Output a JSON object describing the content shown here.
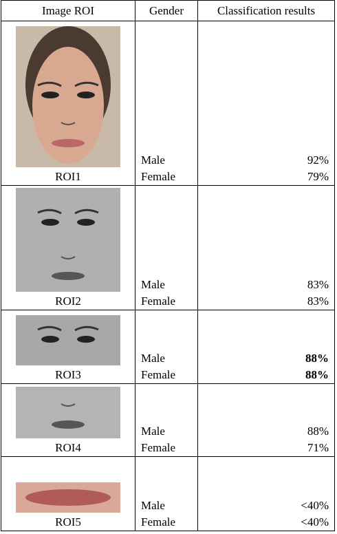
{
  "table": {
    "header": [
      "Image ROI",
      "Gender",
      "Classification results"
    ],
    "rows": [
      {
        "roi": "ROI1",
        "genders": [
          "Male",
          "Female"
        ],
        "results": [
          "92%",
          "79%"
        ],
        "bold": false
      },
      {
        "roi": "ROI2",
        "genders": [
          "Male",
          "Female"
        ],
        "results": [
          "83%",
          "83%"
        ],
        "bold": false
      },
      {
        "roi": "ROI3",
        "genders": [
          "Male",
          "Female"
        ],
        "results": [
          "88%",
          "88%"
        ],
        "bold": true
      },
      {
        "roi": "ROI4",
        "genders": [
          "Male",
          "Female"
        ],
        "results": [
          "88%",
          "71%"
        ],
        "bold": false
      },
      {
        "roi": "ROI5",
        "genders": [
          "Male",
          "Female"
        ],
        "results": [
          "<40%",
          "<40%"
        ],
        "bold": false
      }
    ]
  }
}
